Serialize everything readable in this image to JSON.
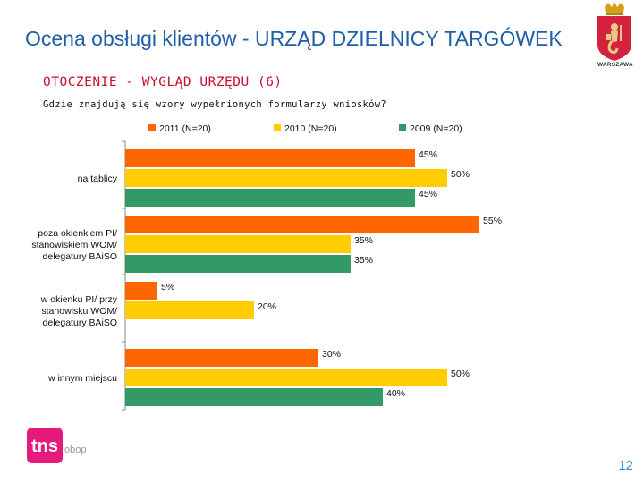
{
  "header": {
    "title": "Ocena obsługi klientów - URZĄD DZIELNICY TARGÓWEK",
    "logo_text": "WARSZAWA",
    "logo_icon": "warsaw-crest-icon"
  },
  "section": {
    "title": "OTOCZENIE - WYGLĄD URZĘDU (6)",
    "question": "Gdzie znajdują się wzory wypełnionych formularzy wniosków?"
  },
  "chart_data": {
    "type": "bar",
    "orientation": "horizontal",
    "categories": [
      [
        "na tablicy"
      ],
      [
        "poza okienkiem PI/",
        "stanowiskiem WOM/",
        "delegatury BAiSO"
      ],
      [
        "w okienku PI/ przy",
        "stanowisku WOM/",
        "delegatury BAiSO"
      ],
      [
        "w innym miejscu"
      ]
    ],
    "series": [
      {
        "name": "2011 (N=20)",
        "color": "#ff6600",
        "values": [
          45,
          55,
          5,
          30
        ]
      },
      {
        "name": "2010 (N=20)",
        "color": "#ffcc00",
        "values": [
          50,
          35,
          20,
          50
        ]
      },
      {
        "name": "2009 (N=20)",
        "color": "#339966",
        "values": [
          45,
          35,
          null,
          40
        ]
      }
    ],
    "value_suffix": "%",
    "xlim": [
      0,
      100
    ],
    "legend_position": "top",
    "grid": false
  },
  "footer": {
    "brand": "tns",
    "brand_sub": "obop",
    "page_number": "12"
  }
}
